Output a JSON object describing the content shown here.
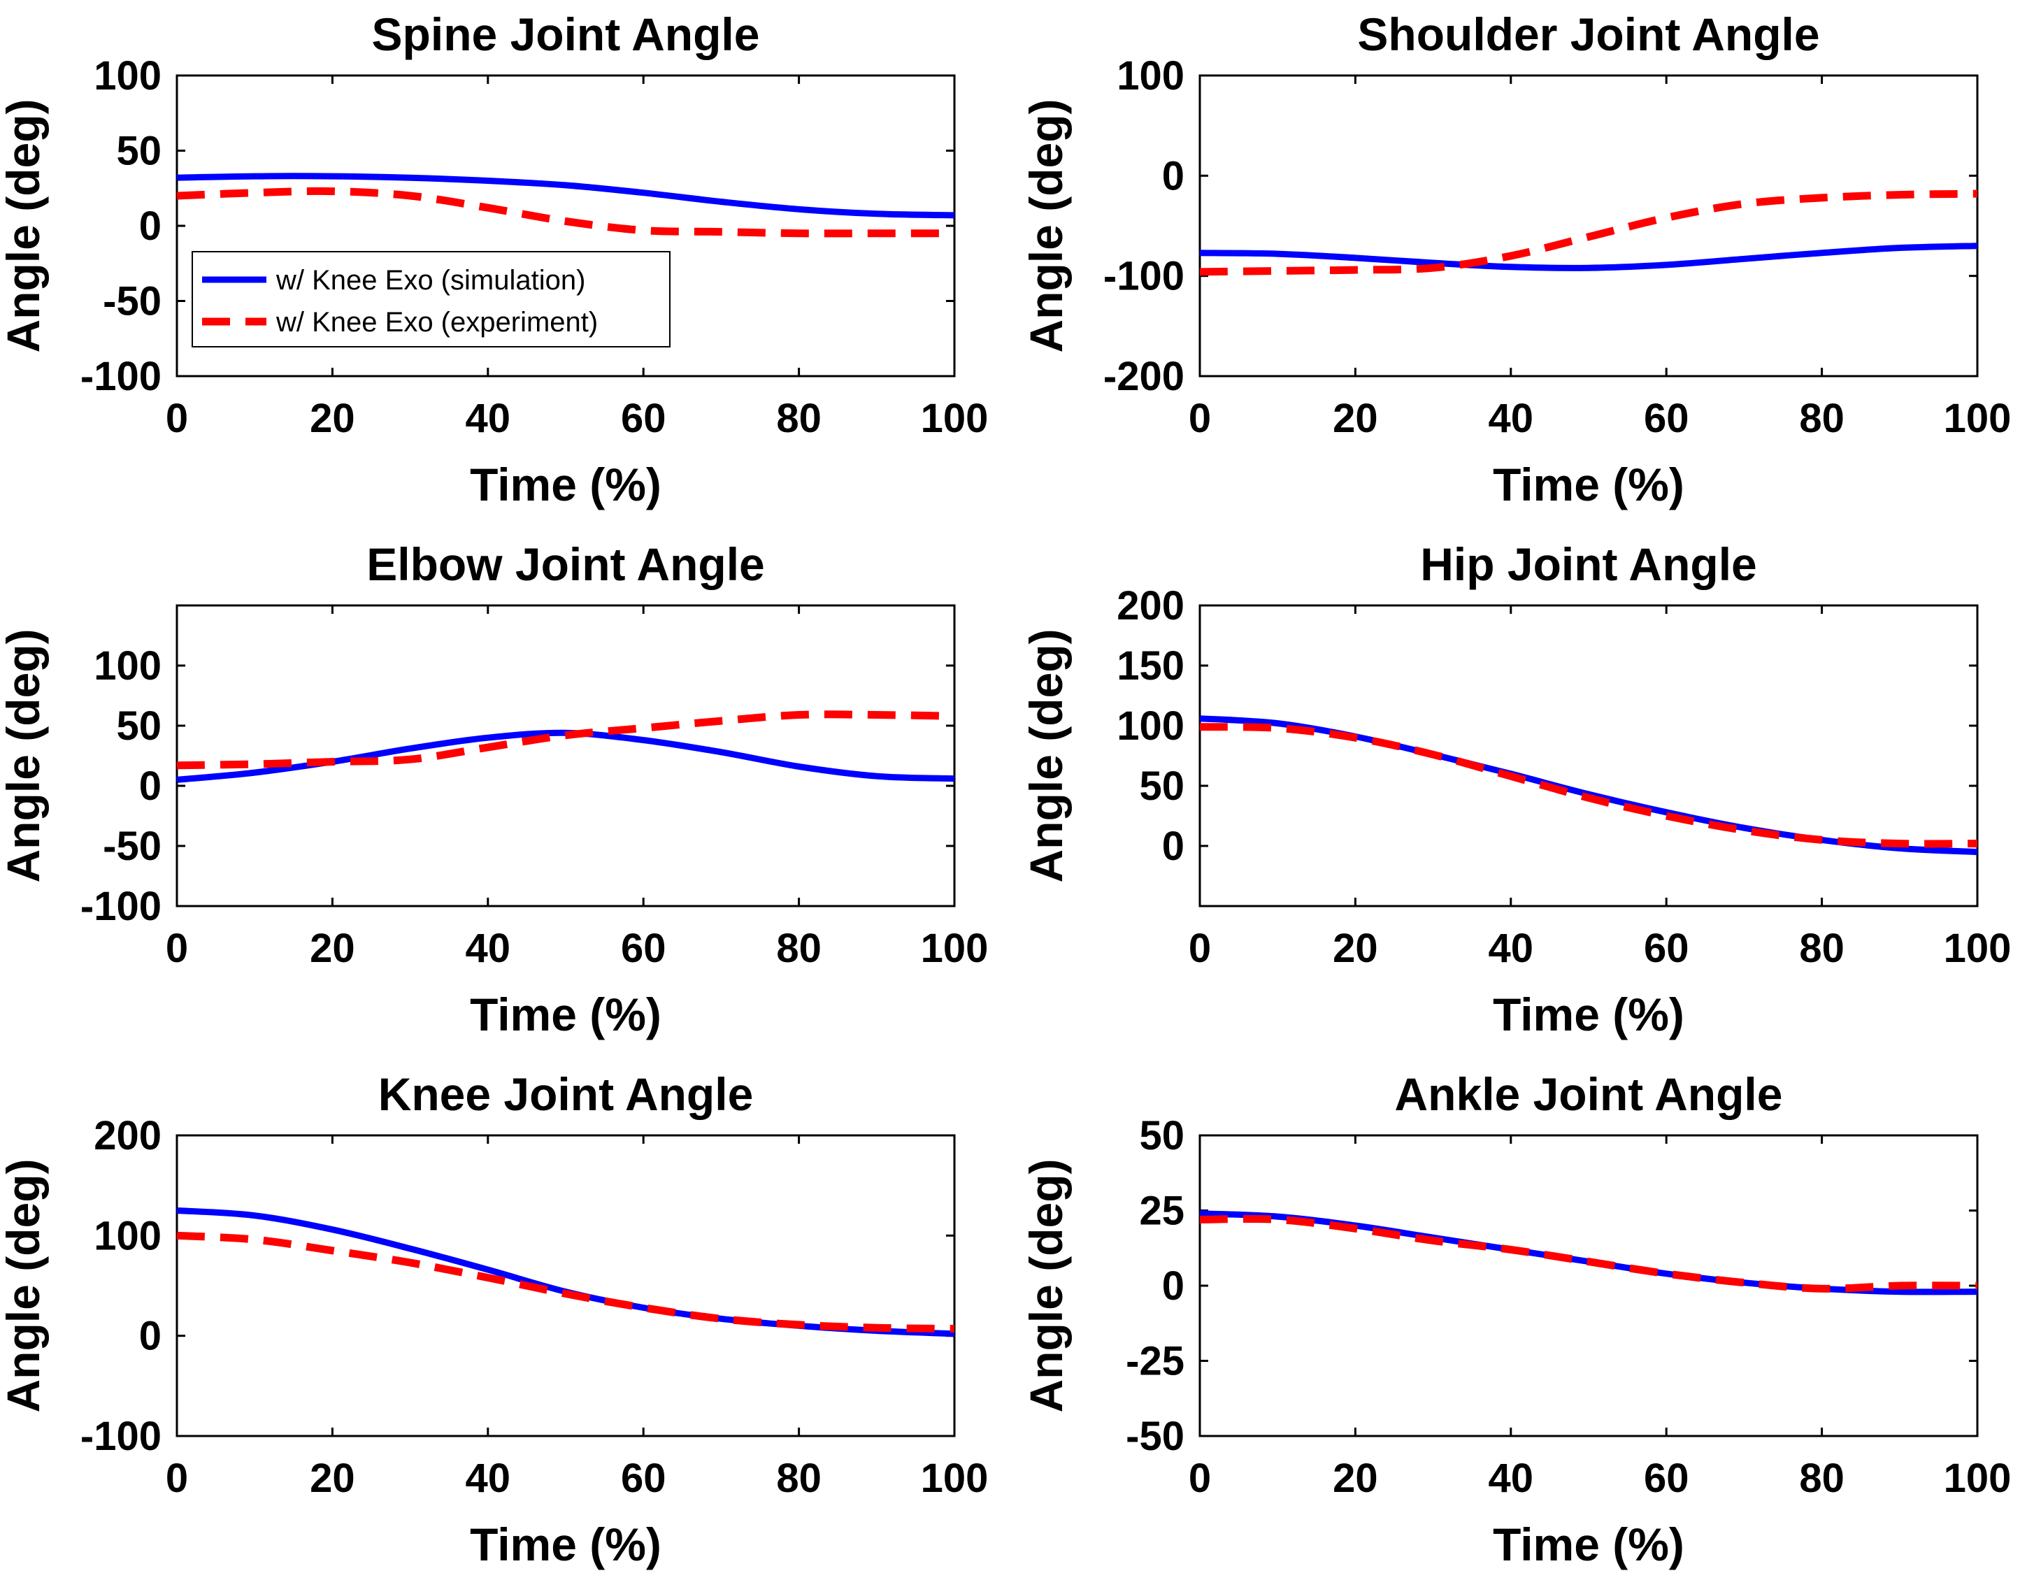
{
  "figure": {
    "legend_labels": [
      "w/ Knee Exo (simulation)",
      "w/ Knee Exo (experiment)"
    ],
    "legend_location": "inside lower-left of Spine Joint Angle panel",
    "colors": {
      "simulation": "#0000ff",
      "experiment": "#ff0000",
      "axes": "#000000",
      "background": "#ffffff"
    }
  },
  "chart_data": [
    {
      "type": "line",
      "title": "Spine Joint Angle",
      "xlabel": "Time (%)",
      "ylabel": "Angle (deg)",
      "xlim": [
        0,
        100
      ],
      "ylim": [
        -100,
        100
      ],
      "xticks": [
        0,
        20,
        40,
        60,
        80,
        100
      ],
      "yticks": [
        100,
        50,
        0,
        -50,
        -100
      ],
      "legend": true,
      "x": [
        0,
        10,
        20,
        30,
        40,
        50,
        60,
        70,
        80,
        90,
        100
      ],
      "series": [
        {
          "name": "w/ Knee Exo (simulation)",
          "style": "solid",
          "values": [
            32,
            33,
            33,
            32,
            30,
            27,
            22,
            16,
            11,
            8,
            7
          ]
        },
        {
          "name": "w/ Knee Exo (experiment)",
          "style": "dashed",
          "values": [
            20,
            22,
            23,
            20,
            12,
            3,
            -3,
            -4,
            -5,
            -5,
            -5
          ]
        }
      ]
    },
    {
      "type": "line",
      "title": "Shoulder Joint Angle",
      "xlabel": "Time (%)",
      "ylabel": "Angle (deg)",
      "xlim": [
        0,
        100
      ],
      "ylim": [
        -200,
        100
      ],
      "xticks": [
        0,
        20,
        40,
        60,
        80,
        100
      ],
      "yticks": [
        100,
        0,
        -100,
        -200
      ],
      "legend": false,
      "x": [
        0,
        10,
        20,
        30,
        40,
        50,
        60,
        70,
        80,
        90,
        100
      ],
      "series": [
        {
          "name": "w/ Knee Exo (simulation)",
          "style": "solid",
          "values": [
            -77,
            -78,
            -82,
            -87,
            -91,
            -92,
            -89,
            -83,
            -77,
            -72,
            -70
          ]
        },
        {
          "name": "w/ Knee Exo (experiment)",
          "style": "dashed",
          "values": [
            -96,
            -95,
            -94,
            -92,
            -80,
            -61,
            -42,
            -28,
            -22,
            -19,
            -18
          ]
        }
      ]
    },
    {
      "type": "line",
      "title": "Elbow Joint Angle",
      "xlabel": "Time (%)",
      "ylabel": "Angle (deg)",
      "xlim": [
        0,
        100
      ],
      "ylim": [
        -100,
        150
      ],
      "xticks": [
        0,
        20,
        40,
        60,
        80,
        100
      ],
      "yticks": [
        100,
        50,
        0,
        -50,
        -100
      ],
      "legend": false,
      "x": [
        0,
        10,
        20,
        30,
        40,
        50,
        60,
        70,
        80,
        90,
        100
      ],
      "series": [
        {
          "name": "w/ Knee Exo (simulation)",
          "style": "solid",
          "values": [
            5,
            11,
            20,
            31,
            40,
            44,
            38,
            28,
            16,
            8,
            6
          ]
        },
        {
          "name": "w/ Knee Exo (experiment)",
          "style": "dashed",
          "values": [
            17,
            18,
            20,
            22,
            32,
            42,
            48,
            54,
            59,
            59,
            58
          ]
        }
      ]
    },
    {
      "type": "line",
      "title": "Hip Joint Angle",
      "xlabel": "Time (%)",
      "ylabel": "Angle (deg)",
      "xlim": [
        0,
        100
      ],
      "ylim": [
        -50,
        200
      ],
      "xticks": [
        0,
        20,
        40,
        60,
        80,
        100
      ],
      "yticks": [
        200,
        150,
        100,
        50,
        0
      ],
      "legend": false,
      "x": [
        0,
        10,
        20,
        30,
        40,
        50,
        60,
        70,
        80,
        90,
        100
      ],
      "series": [
        {
          "name": "w/ Knee Exo (simulation)",
          "style": "solid",
          "values": [
            106,
            102,
            91,
            76,
            60,
            43,
            28,
            15,
            5,
            -2,
            -5
          ]
        },
        {
          "name": "w/ Knee Exo (experiment)",
          "style": "dashed",
          "values": [
            99,
            98,
            90,
            76,
            58,
            40,
            25,
            13,
            5,
            2,
            2
          ]
        }
      ]
    },
    {
      "type": "line",
      "title": "Knee Joint Angle",
      "xlabel": "Time (%)",
      "ylabel": "Angle (deg)",
      "xlim": [
        0,
        100
      ],
      "ylim": [
        -100,
        200
      ],
      "xticks": [
        0,
        20,
        40,
        60,
        80,
        100
      ],
      "yticks": [
        200,
        100,
        0,
        -100
      ],
      "legend": false,
      "x": [
        0,
        10,
        20,
        30,
        40,
        50,
        60,
        70,
        80,
        90,
        100
      ],
      "series": [
        {
          "name": "w/ Knee Exo (simulation)",
          "style": "solid",
          "values": [
            125,
            120,
            106,
            87,
            66,
            44,
            28,
            17,
            10,
            5,
            2
          ]
        },
        {
          "name": "w/ Knee Exo (experiment)",
          "style": "dashed",
          "values": [
            100,
            96,
            85,
            73,
            58,
            42,
            28,
            17,
            11,
            8,
            7
          ]
        }
      ]
    },
    {
      "type": "line",
      "title": "Ankle Joint Angle",
      "xlabel": "Time (%)",
      "ylabel": "Angle (deg)",
      "xlim": [
        0,
        100
      ],
      "ylim": [
        -50,
        50
      ],
      "xticks": [
        0,
        20,
        40,
        60,
        80,
        100
      ],
      "yticks": [
        50,
        25,
        0,
        -25,
        -50
      ],
      "legend": false,
      "x": [
        0,
        10,
        20,
        30,
        40,
        50,
        60,
        70,
        80,
        90,
        100
      ],
      "series": [
        {
          "name": "w/ Knee Exo (simulation)",
          "style": "solid",
          "values": [
            24,
            23,
            20,
            16,
            12,
            8,
            4,
            1,
            -1,
            -2,
            -2
          ]
        },
        {
          "name": "w/ Knee Exo (experiment)",
          "style": "dashed",
          "values": [
            22,
            22,
            19,
            15,
            12,
            8,
            4,
            1,
            -1,
            0,
            0
          ]
        }
      ]
    }
  ]
}
